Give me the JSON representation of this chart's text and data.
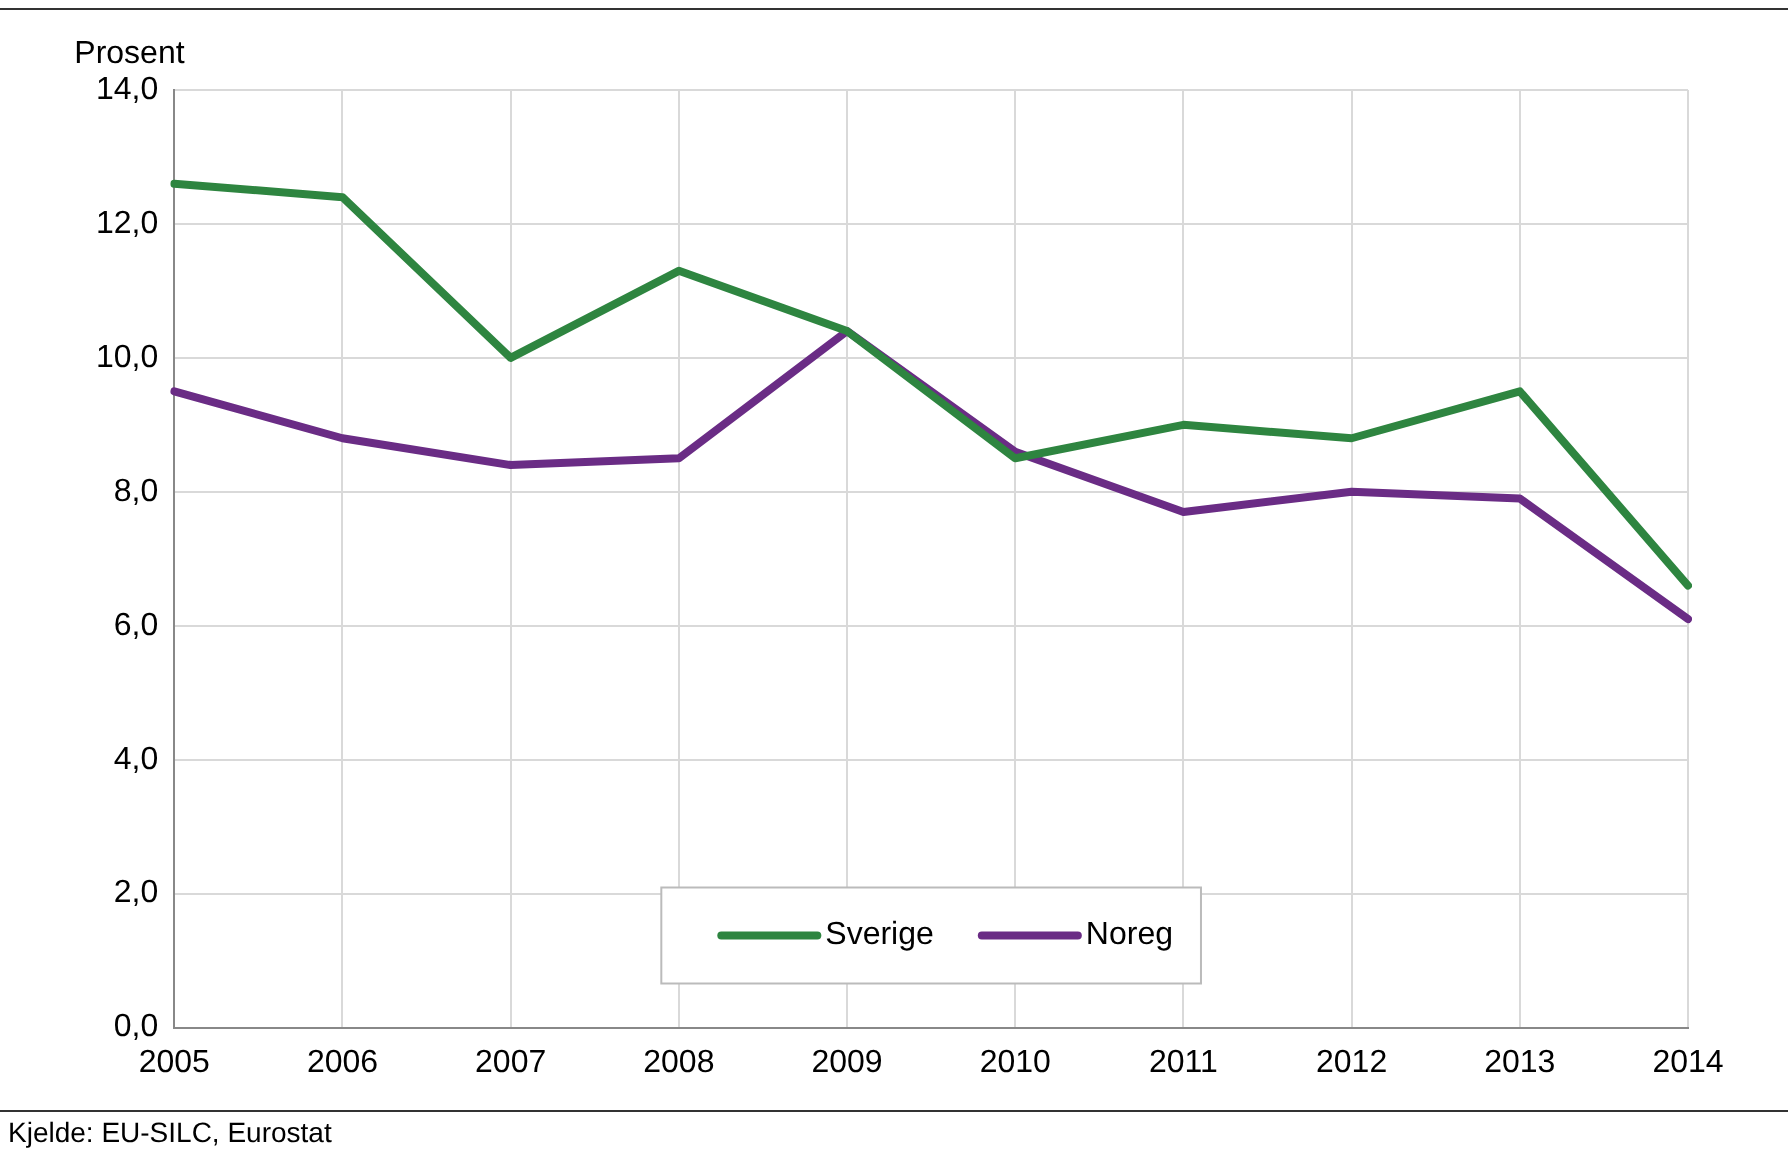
{
  "chart_data": {
    "type": "line",
    "ylabel": "Prosent",
    "categories": [
      "2005",
      "2006",
      "2007",
      "2008",
      "2009",
      "2010",
      "2011",
      "2012",
      "2013",
      "2014"
    ],
    "series": [
      {
        "name": "Sverige",
        "color": "#2e8540",
        "values": [
          12.6,
          12.4,
          10.0,
          11.3,
          10.4,
          8.5,
          9.0,
          8.8,
          9.5,
          6.6
        ]
      },
      {
        "name": "Noreg",
        "color": "#6a2c85",
        "values": [
          9.5,
          8.8,
          8.4,
          8.5,
          10.4,
          8.6,
          7.7,
          8.0,
          7.9,
          6.1
        ]
      }
    ],
    "ylim": [
      0,
      14
    ],
    "yticks": [
      {
        "value": 0,
        "label": "0,0"
      },
      {
        "value": 2,
        "label": "2,0"
      },
      {
        "value": 4,
        "label": "4,0"
      },
      {
        "value": 6,
        "label": "6,0"
      },
      {
        "value": 8,
        "label": "8,0"
      },
      {
        "value": 10,
        "label": "10,0"
      },
      {
        "value": 12,
        "label": "12,0"
      },
      {
        "value": 14,
        "label": "14,0"
      }
    ],
    "grid": true,
    "legend": "bottom",
    "marker": "none",
    "line_style": "solid",
    "annotations": [
      "Kjelde: EU-SILC, Eurostat"
    ]
  }
}
